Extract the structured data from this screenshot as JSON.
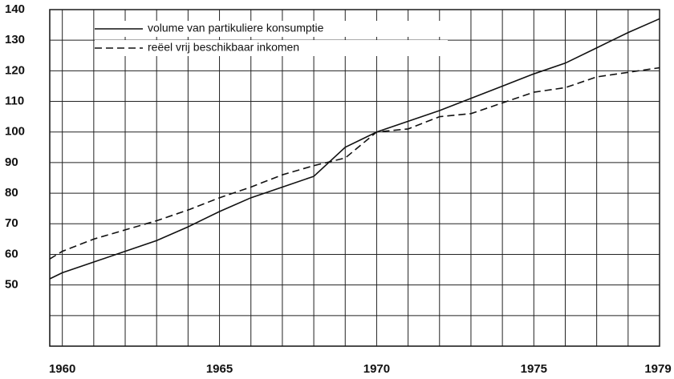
{
  "chart_data": {
    "type": "line",
    "x": [
      1959.6,
      1960,
      1961,
      1962,
      1963,
      1964,
      1965,
      1966,
      1967,
      1968,
      1969,
      1970,
      1971,
      1972,
      1973,
      1974,
      1975,
      1976,
      1977,
      1978,
      1979
    ],
    "series": [
      {
        "name": "volume van partikuliere konsumptie",
        "color": "#111111",
        "dash": false,
        "values": [
          52,
          54,
          57.5,
          61,
          64.5,
          69,
          74,
          78.5,
          82,
          85.5,
          95,
          100,
          103.5,
          107,
          111,
          115,
          119,
          122.5,
          127.5,
          132.5,
          137
        ]
      },
      {
        "name": "reëel vrij beschikbaar inkomen",
        "color": "#111111",
        "dash": true,
        "values": [
          58.5,
          61,
          65,
          68,
          71,
          74.5,
          78.5,
          82,
          86,
          89,
          91.5,
          100,
          101,
          105,
          106,
          109.5,
          113,
          114.5,
          118,
          119.5,
          121
        ]
      }
    ],
    "xlim": [
      1959.6,
      1979
    ],
    "xticks": [
      1960,
      1965,
      1970,
      1975,
      1979
    ],
    "ylim": [
      30,
      140
    ],
    "yticks": [
      50,
      60,
      70,
      80,
      90,
      100,
      110,
      120,
      130,
      140
    ],
    "grid": true,
    "legend": "top-left"
  }
}
